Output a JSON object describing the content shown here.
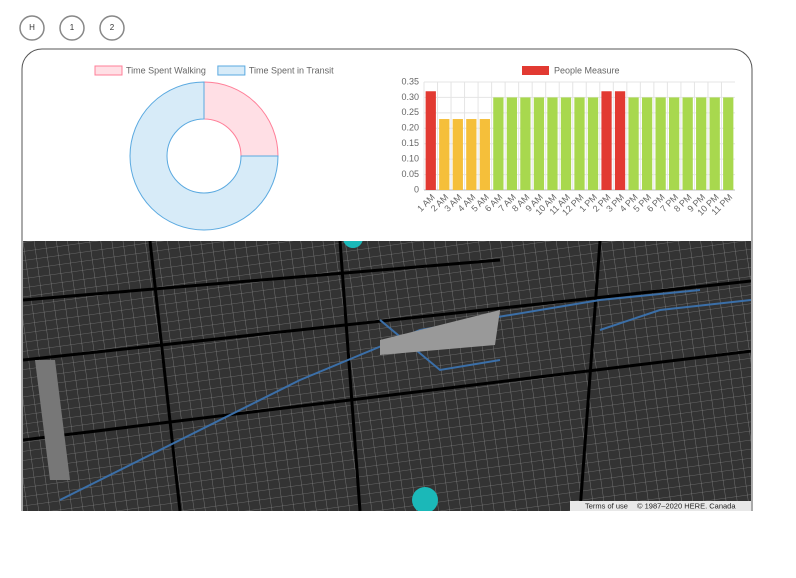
{
  "buttons": [
    "H",
    "1",
    "2"
  ],
  "chart_data": [
    {
      "type": "doughnut",
      "categories": [
        "Time Spent Walking",
        "Time Spent in Transit"
      ],
      "values": [
        25,
        75
      ],
      "colors": [
        "#ffdfe5",
        "#d7ebf8"
      ],
      "border_colors": [
        "#ff7f98",
        "#5aa9e0"
      ]
    },
    {
      "type": "bar",
      "categories": [
        "1 AM",
        "2 AM",
        "3 AM",
        "4 AM",
        "5 AM",
        "6 AM",
        "7 AM",
        "8 AM",
        "9 AM",
        "10 AM",
        "11 AM",
        "12 PM",
        "1 PM",
        "2 PM",
        "3 PM",
        "4 PM",
        "5 PM",
        "6 PM",
        "7 PM",
        "8 PM",
        "9 PM",
        "10 PM",
        "11 PM"
      ],
      "series": [
        {
          "name": "People Measure",
          "color": "#e23a32",
          "values": [
            0.32,
            0.23,
            0.23,
            0.23,
            0.23,
            0.3,
            0.3,
            0.3,
            0.3,
            0.3,
            0.3,
            0.3,
            0.3,
            0.32,
            0.32,
            0.3,
            0.3,
            0.3,
            0.3,
            0.3,
            0.3,
            0.3,
            0.3
          ],
          "colors": [
            "#e23a32",
            "#f5bf3a",
            "#f5bf3a",
            "#f5bf3a",
            "#f5bf3a",
            "#a8d84e",
            "#a8d84e",
            "#a8d84e",
            "#a8d84e",
            "#a8d84e",
            "#a8d84e",
            "#a8d84e",
            "#a8d84e",
            "#e23a32",
            "#e23a32",
            "#a8d84e",
            "#a8d84e",
            "#a8d84e",
            "#a8d84e",
            "#a8d84e",
            "#a8d84e",
            "#a8d84e",
            "#a8d84e"
          ]
        }
      ],
      "ylim": [
        0,
        0.35
      ],
      "yticks": [
        0,
        0.05,
        {
          "value": 0.1,
          "label": "0.10"
        },
        0.15,
        {
          "value": 0.2,
          "label": "0.20"
        },
        0.25,
        {
          "value": 0.3,
          "label": "0.30"
        },
        0.35
      ],
      "grid": true
    }
  ],
  "map": {
    "terms": "Terms of use",
    "copyright": "© 1987–2020 HERE. Canada"
  }
}
